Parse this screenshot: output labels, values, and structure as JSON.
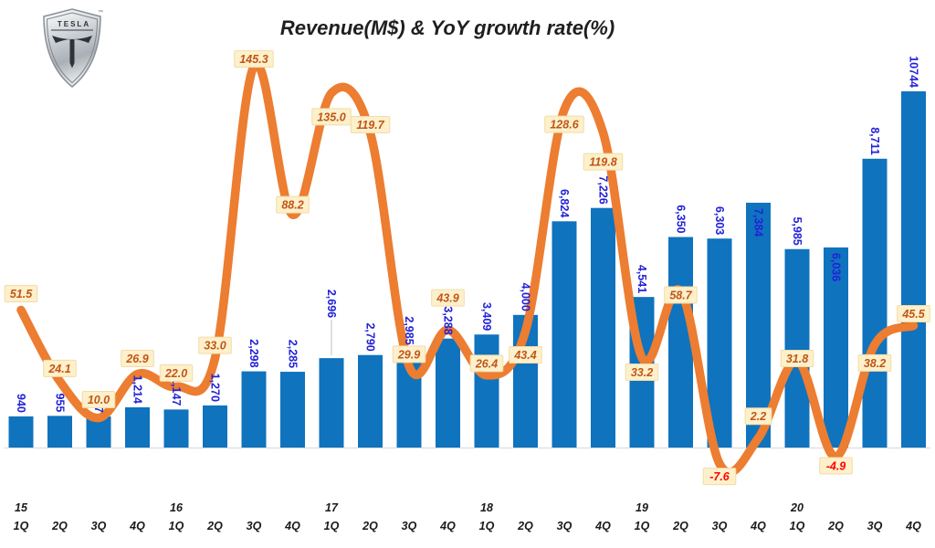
{
  "logo": {
    "brand": "TESLA",
    "trademark": "™"
  },
  "title": "Revenue(M$) & YoY growth rate(%)",
  "chart_data": {
    "type": "combo bar+line",
    "x_axis": {
      "quarters": [
        "1Q",
        "2Q",
        "3Q",
        "4Q",
        "1Q",
        "2Q",
        "3Q",
        "4Q",
        "1Q",
        "2Q",
        "3Q",
        "4Q",
        "1Q",
        "2Q",
        "3Q",
        "4Q",
        "1Q",
        "2Q",
        "3Q",
        "4Q",
        "1Q",
        "2Q",
        "3Q",
        "4Q"
      ],
      "years": [
        "15",
        "",
        "",
        "",
        "16",
        "",
        "",
        "",
        "17",
        "",
        "",
        "",
        "18",
        "",
        "",
        "",
        "19",
        "",
        "",
        "",
        "20",
        "",
        "",
        ""
      ]
    },
    "series": [
      {
        "name": "Revenue(M$)",
        "type": "bar",
        "color": "#0F73BE",
        "label_color": "#2222D8",
        "values": [
          940,
          955,
          937,
          1214,
          1147,
          1270,
          2298,
          2285,
          2696,
          2790,
          2985,
          3288,
          3409,
          4000,
          6824,
          7226,
          4541,
          6350,
          6303,
          7384,
          5985,
          6036,
          8711,
          10744
        ],
        "labels": [
          "940",
          "955",
          "937",
          "1,214",
          "1,147",
          "1,270",
          "2,298",
          "2,285",
          "2,696",
          "2,790",
          "2,985",
          "3,288",
          "3,409",
          "4,000",
          "6,824",
          "7,226",
          "4,541",
          "6,350",
          "6,303",
          "7,384",
          "5,985",
          "6,036",
          "8,711",
          "10744"
        ]
      },
      {
        "name": "YoY growth rate(%)",
        "type": "line",
        "color": "#EC7D31",
        "label_bg": "#FDF0CB",
        "label_border": "#F3DCA6",
        "label_color": "#C05617",
        "negative_label_color": "#FF0000",
        "values": [
          51.5,
          24.1,
          10.0,
          26.9,
          22.0,
          33.0,
          145.3,
          88.2,
          135.0,
          119.7,
          29.9,
          43.9,
          26.4,
          43.4,
          128.6,
          119.8,
          33.2,
          58.7,
          -7.6,
          2.2,
          31.8,
          -4.9,
          38.2,
          45.5
        ],
        "labels": [
          "51.5",
          "24.1",
          "10.0",
          "26.9",
          "22.0",
          "33.0",
          "145.3",
          "88.2",
          "135.0",
          "119.7",
          "29.9",
          "43.9",
          "26.4",
          "43.4",
          "128.6",
          "119.8",
          "33.2",
          "58.7",
          "-7.6",
          "2.2",
          "31.8",
          "-4.9",
          "38.2",
          "45.5"
        ]
      }
    ],
    "layout_hints": {
      "bar_axis_baseline": "bottom",
      "grid": "off",
      "value_labels_rotated_90deg": true,
      "growth_labels_boxed": true
    }
  }
}
